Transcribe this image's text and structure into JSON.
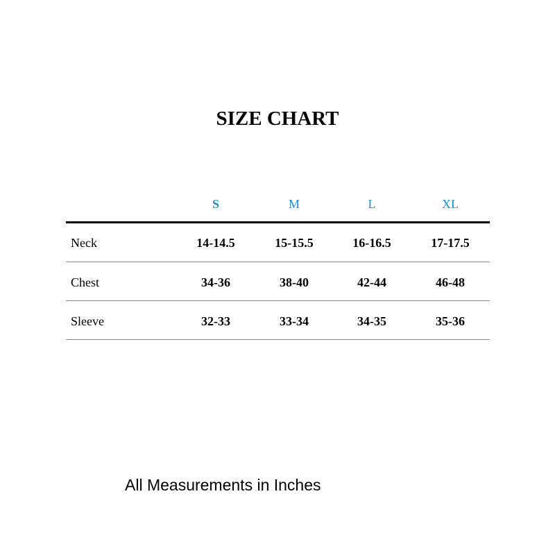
{
  "title": "SIZE CHART",
  "sizes": [
    "S",
    "M",
    "L",
    "XL"
  ],
  "accent_color": "#1a8fe0",
  "rows": [
    {
      "label": "Neck",
      "values": [
        "14-14.5",
        "15-15.5",
        "16-16.5",
        "17-17.5"
      ]
    },
    {
      "label": "Chest",
      "values": [
        "34-36",
        "38-40",
        "42-44",
        "46-48"
      ]
    },
    {
      "label": "Sleeve",
      "values": [
        "32-33",
        "33-34",
        "34-35",
        "35-36"
      ]
    }
  ],
  "footer": "All Measurements in Inches"
}
